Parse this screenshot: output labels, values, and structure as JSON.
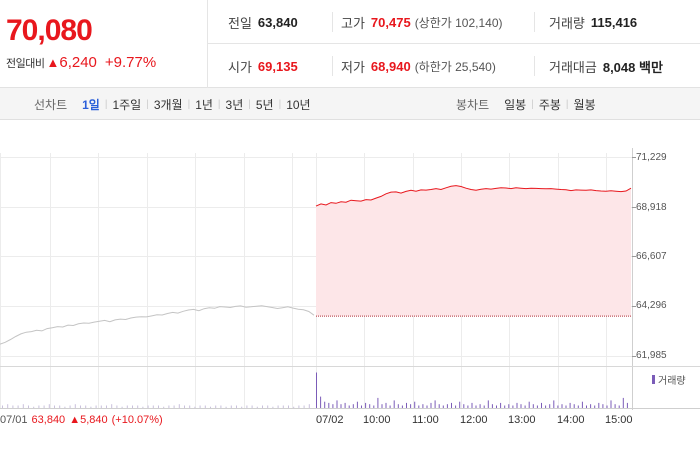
{
  "quote": {
    "price": "70,080",
    "change_label": "전일대비",
    "change_value": "6,240",
    "change_pct": "+9.77%",
    "prev_close_label": "전일",
    "prev_close": "63,840",
    "high_label": "고가",
    "high": "70,475",
    "upper_limit": "(상한가 102,140)",
    "volume_label": "거래량",
    "volume": "115,416",
    "open_label": "시가",
    "open": "69,135",
    "low_label": "저가",
    "low": "68,940",
    "lower_limit": "(하한가 25,540)",
    "amount_label": "거래대금",
    "amount": "8,048 백만"
  },
  "tabs": {
    "line_title": "선차트",
    "line_tabs": [
      "1일",
      "1주일",
      "3개월",
      "1년",
      "3년",
      "5년",
      "10년"
    ],
    "active_line_tab": "1일",
    "candle_title": "봉차트",
    "candle_tabs": [
      "일봉",
      "주봉",
      "월봉"
    ]
  },
  "chart_data": {
    "type": "line",
    "y_ticks": [
      "71,229",
      "68,918",
      "66,607",
      "64,296",
      "61,985"
    ],
    "ylim": [
      61985,
      71229
    ],
    "x_ticks": [
      "07/02",
      "10:00",
      "11:00",
      "12:00",
      "13:00",
      "14:00",
      "15:00"
    ],
    "footer": {
      "date": "07/01",
      "price": "63,840",
      "change": "▲5,840",
      "pct": "(+10.07%)"
    },
    "legend": "거래량",
    "prev_close_value": 63840,
    "series": [
      {
        "values_prev_day": [
          62540,
          62620,
          62750,
          62890,
          63010,
          63090,
          63120,
          63180,
          63150,
          63260,
          63300,
          63350,
          63330,
          63420,
          63400,
          63480,
          63520,
          63510,
          63560,
          63600,
          63640,
          63580,
          63660,
          63700,
          63680,
          63750,
          63790,
          63810,
          63800,
          63850,
          63900,
          63890,
          63960,
          64010,
          63980,
          64060,
          64120,
          64150,
          64090,
          64180,
          64230,
          64200,
          64280,
          64260,
          64240,
          64290,
          64310,
          64250,
          64270,
          64300,
          64320,
          64280,
          64240,
          64190,
          64230,
          64270,
          64210,
          64160,
          64130,
          64050,
          63880
        ]
      },
      {
        "name": "",
        "values_today": [
          68950,
          69050,
          69000,
          69110,
          69080,
          69150,
          69130,
          69220,
          69200,
          69180,
          69250,
          69230,
          69320,
          69400,
          69520,
          69600,
          69610,
          69550,
          69630,
          69680,
          69640,
          69700,
          69690,
          69720,
          69760,
          69720,
          69800,
          69870,
          69900,
          69860,
          69780,
          69720,
          69680,
          69730,
          69760,
          69740,
          69770,
          69800,
          69790,
          69760,
          69800,
          69780,
          69760,
          69780,
          69770,
          69760,
          69750,
          69760,
          69740,
          69720,
          69710,
          69670,
          69700,
          69690,
          69680,
          69700,
          69670,
          69650,
          69640,
          69660,
          69640,
          69620,
          69650,
          69780
        ]
      }
    ],
    "volume": [
      2,
      3,
      2,
      2,
      3,
      2,
      1,
      2,
      2,
      3,
      2,
      2,
      1,
      2,
      3,
      2,
      2,
      1,
      2,
      2,
      2,
      3,
      2,
      1,
      2,
      2,
      2,
      1,
      2,
      2,
      2,
      1,
      2,
      2,
      3,
      2,
      2,
      1,
      2,
      2,
      1,
      2,
      2,
      1,
      2,
      2,
      1,
      2,
      2,
      1,
      2,
      2,
      1,
      2,
      2,
      2,
      1,
      2,
      2,
      3,
      28,
      9,
      5,
      4,
      3,
      6,
      3,
      4,
      2,
      3,
      5,
      2,
      4,
      3,
      2,
      8,
      3,
      4,
      2,
      6,
      3,
      2,
      4,
      3,
      5,
      2,
      3,
      2,
      4,
      6,
      3,
      2,
      3,
      4,
      2,
      5,
      3,
      2,
      4,
      2,
      3,
      2,
      6,
      3,
      2,
      4,
      2,
      3,
      2,
      4,
      3,
      2,
      5,
      3,
      2,
      4,
      2,
      3,
      6,
      2,
      3,
      2,
      4,
      3,
      2,
      5,
      2,
      3,
      2,
      4,
      3,
      2,
      6,
      3,
      2,
      8,
      4
    ]
  }
}
